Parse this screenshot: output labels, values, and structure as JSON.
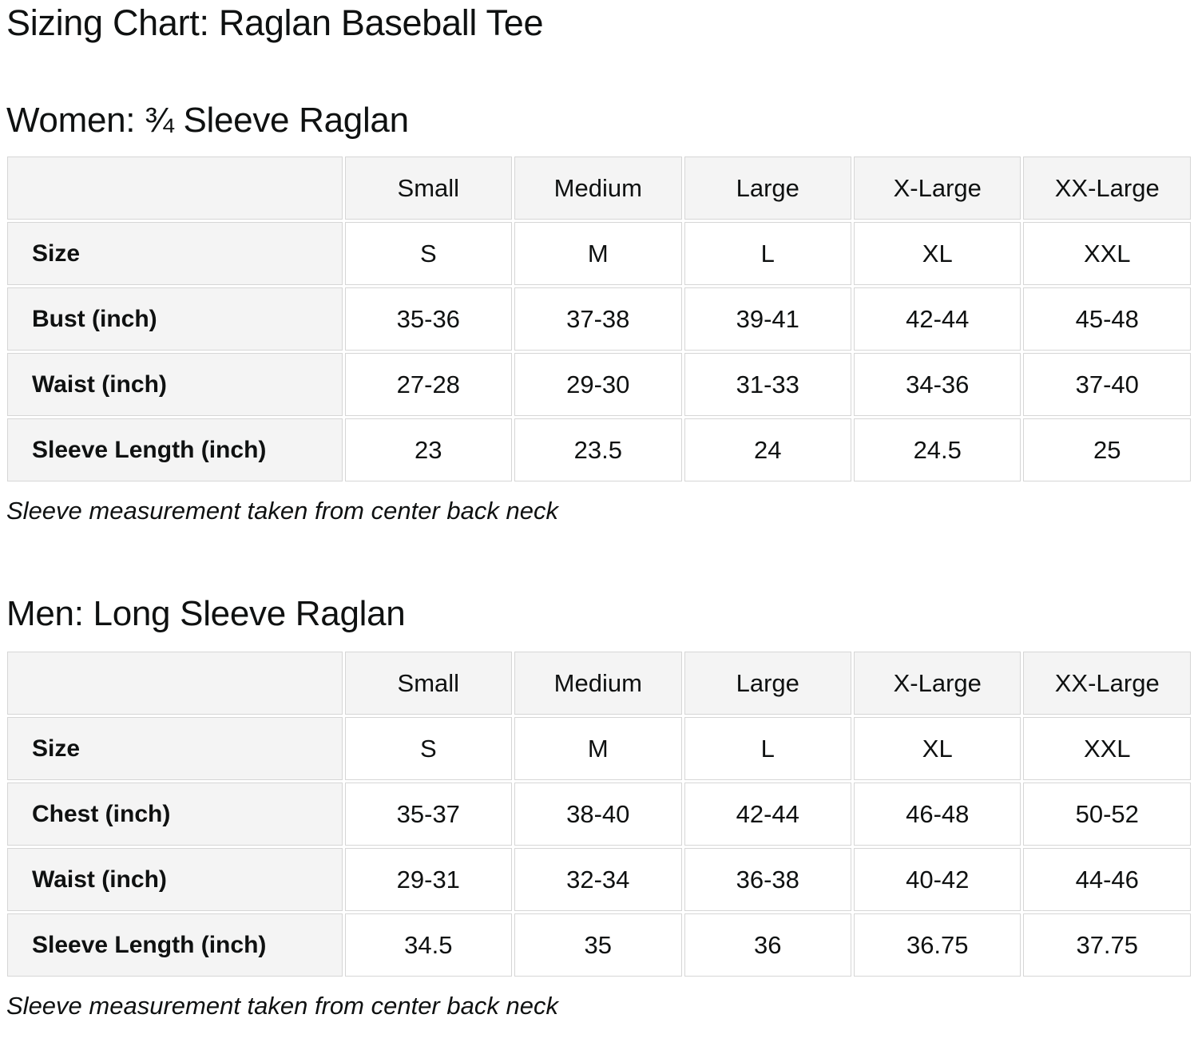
{
  "page": {
    "title": "Sizing Chart: Raglan Baseball Tee"
  },
  "colors": {
    "text": "#0f1111",
    "table_header_bg": "#f4f4f4",
    "table_border": "#d6d6d6",
    "cell_bg": "#ffffff"
  },
  "sections": [
    {
      "heading": "Women: ¾ Sleeve Raglan",
      "columns": [
        "Small",
        "Medium",
        "Large",
        "X-Large",
        "XX-Large"
      ],
      "rows": [
        {
          "label": "Size",
          "values": [
            "S",
            "M",
            "L",
            "XL",
            "XXL"
          ]
        },
        {
          "label": "Bust (inch)",
          "values": [
            "35-36",
            "37-38",
            "39-41",
            "42-44",
            "45-48"
          ]
        },
        {
          "label": "Waist (inch)",
          "values": [
            "27-28",
            "29-30",
            "31-33",
            "34-36",
            "37-40"
          ]
        },
        {
          "label": "Sleeve Length (inch)",
          "values": [
            "23",
            "23.5",
            "24",
            "24.5",
            "25"
          ]
        }
      ],
      "note": "Sleeve measurement taken from center back neck"
    },
    {
      "heading": "Men: Long Sleeve Raglan",
      "columns": [
        "Small",
        "Medium",
        "Large",
        "X-Large",
        "XX-Large"
      ],
      "rows": [
        {
          "label": "Size",
          "values": [
            "S",
            "M",
            "L",
            "XL",
            "XXL"
          ]
        },
        {
          "label": "Chest (inch)",
          "values": [
            "35-37",
            "38-40",
            "42-44",
            "46-48",
            "50-52"
          ]
        },
        {
          "label": "Waist (inch)",
          "values": [
            "29-31",
            "32-34",
            "36-38",
            "40-42",
            "44-46"
          ]
        },
        {
          "label": "Sleeve Length (inch)",
          "values": [
            "34.5",
            "35",
            "36",
            "36.75",
            "37.75"
          ]
        }
      ],
      "note": "Sleeve measurement taken from center back neck"
    }
  ]
}
